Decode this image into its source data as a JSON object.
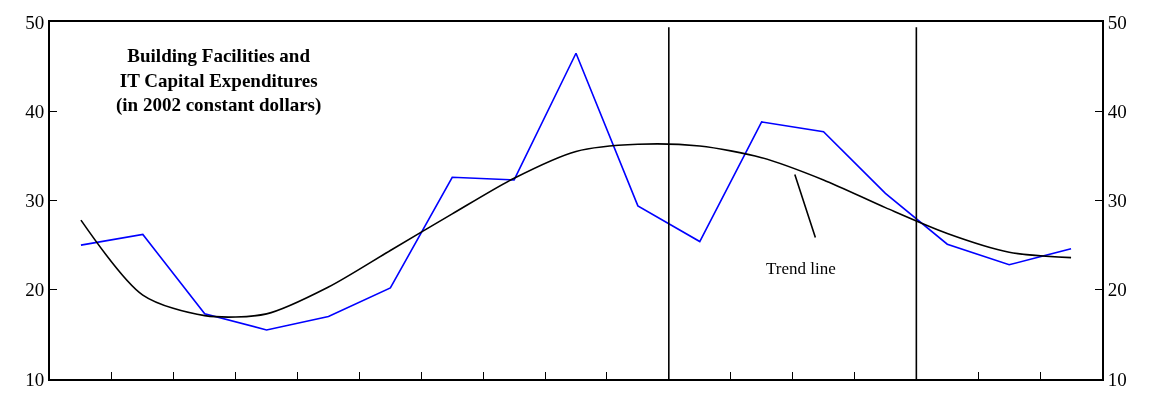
{
  "chart_data": {
    "type": "line",
    "title": "Building Facilities and\nIT Capital Expenditures\n(in 2002 constant dollars)",
    "categories": [
      null,
      null,
      null,
      null,
      null,
      null,
      null,
      null,
      null,
      null,
      null,
      null,
      null,
      null,
      null,
      null,
      null
    ],
    "ylim": [
      10,
      50
    ],
    "yticks": [
      10,
      20,
      30,
      40,
      50
    ],
    "y2lim": [
      10,
      50
    ],
    "y2ticks": [
      10,
      20,
      30,
      40,
      50
    ],
    "tick_labels": "y",
    "grid": false,
    "marker": "none",
    "line_style": "solid",
    "series": [
      {
        "color": "#0000ff",
        "values": [
          25.0,
          26.2,
          17.3,
          15.5,
          17.0,
          20.2,
          32.6,
          32.3,
          46.5,
          29.4,
          25.4,
          38.8,
          37.7,
          30.8,
          25.1,
          22.8,
          24.6
        ]
      },
      {
        "type": "line",
        "color": "#000000",
        "values": [
          27.8,
          19.4,
          17.1,
          17.3,
          20.3,
          24.4,
          28.5,
          32.5,
          35.5,
          36.3,
          36.1,
          34.8,
          32.3,
          29.2,
          26.3,
          24.2,
          23.6
        ]
      }
    ],
    "annotations": [
      "Trend line"
    ]
  }
}
